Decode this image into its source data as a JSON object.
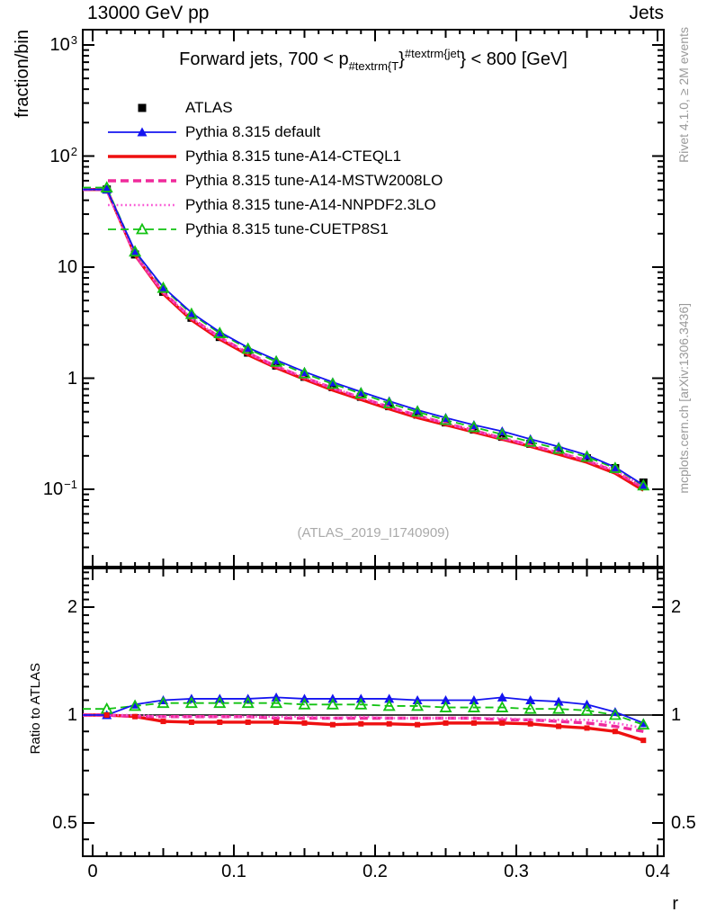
{
  "header": {
    "left": "13000 GeV pp",
    "right": "Jets"
  },
  "title": {
    "prefix": "Forward jets, 700 < p",
    "sub": "#textrm{T",
    "brace1": "}",
    "sup": "#textrm{jet",
    "suffix": "} < 800 [GeV]"
  },
  "watermark": "(ATLAS_2019_I1740909)",
  "side_texts": {
    "rivet": "Rivet 4.1.0, ≥ 2M events",
    "mcplots": "mcplots.cern.ch [arXiv:1306.3436]"
  },
  "axes": {
    "main_y_label": "fraction/bin",
    "ratio_y_label": "Ratio to ATLAS",
    "x_label": "r",
    "x_ticks": [
      {
        "v": 0,
        "label": "0"
      },
      {
        "v": 0.1,
        "label": "0.1"
      },
      {
        "v": 0.2,
        "label": "0.2"
      },
      {
        "v": 0.3,
        "label": "0.3"
      },
      {
        "v": 0.4,
        "label": "0.4"
      }
    ],
    "main_y_ticks": [
      {
        "v": 1000,
        "base": "10",
        "exp": "3"
      },
      {
        "v": 100,
        "base": "10",
        "exp": "2"
      },
      {
        "v": 10,
        "base": "10",
        "exp": ""
      },
      {
        "v": 1,
        "base": "1",
        "exp": ""
      },
      {
        "v": 0.1,
        "base": "10",
        "exp": "−1"
      }
    ],
    "ratio_y_ticks": [
      {
        "v": 2,
        "label": "2"
      },
      {
        "v": 1,
        "label": "1"
      },
      {
        "v": 0.5,
        "label": "0.5"
      }
    ]
  },
  "chart_data": {
    "type": "line",
    "title": "Forward jets, 700 < p_{#textrm{T}}^{#textrm{jet}} < 800 [GeV]",
    "xlabel": "r",
    "ylabel": "fraction/bin",
    "ratio_ylabel": "Ratio to ATLAS",
    "xscale": "linear",
    "yscale": "log",
    "ratio_yscale": "log",
    "xlim": [
      -0.007,
      0.4045
    ],
    "ylim": [
      0.02,
      1380
    ],
    "ratio_ylim": [
      0.404,
      2.56
    ],
    "legend_position": "top-left",
    "grid": false,
    "x": [
      0.01,
      0.03,
      0.05,
      0.07,
      0.09,
      0.11,
      0.13,
      0.15,
      0.17,
      0.19,
      0.21,
      0.23,
      0.25,
      0.27,
      0.29,
      0.31,
      0.33,
      0.35,
      0.37,
      0.39
    ],
    "reference": {
      "name": "ATLAS",
      "color": "#000000",
      "marker": "filled-square",
      "values": [
        50,
        13,
        6.0,
        3.5,
        2.35,
        1.7,
        1.3,
        1.03,
        0.83,
        0.68,
        0.56,
        0.47,
        0.4,
        0.345,
        0.297,
        0.257,
        0.222,
        0.19,
        0.155,
        0.115
      ]
    },
    "series": [
      {
        "name": "Pythia 8.315 tune-A14-CTEQL1",
        "color": "#ee1010",
        "line": "solid",
        "width": 3.4,
        "marker": "small-square",
        "ratio": [
          1.0,
          0.99,
          0.96,
          0.955,
          0.955,
          0.955,
          0.955,
          0.95,
          0.94,
          0.945,
          0.945,
          0.94,
          0.95,
          0.95,
          0.95,
          0.945,
          0.93,
          0.92,
          0.9,
          0.85
        ]
      },
      {
        "name": "Pythia 8.315 tune-A14-MSTW2008LO",
        "color": "#ef2a9b",
        "line": "dashed",
        "width": 3.4,
        "marker": "none",
        "ratio": [
          1.0,
          0.99,
          0.99,
          0.99,
          0.99,
          0.99,
          0.98,
          0.98,
          0.98,
          0.98,
          0.98,
          0.98,
          0.98,
          0.98,
          0.97,
          0.97,
          0.96,
          0.95,
          0.93,
          0.9
        ]
      },
      {
        "name": "Pythia 8.315 tune-A14-NNPDF2.3LO",
        "color": "#f959d5",
        "line": "dotted",
        "width": 2.6,
        "marker": "none",
        "ratio": [
          1.0,
          1.0,
          0.99,
          0.99,
          0.99,
          0.99,
          0.99,
          0.99,
          0.98,
          0.99,
          0.98,
          0.98,
          0.98,
          0.98,
          0.98,
          0.97,
          0.97,
          0.97,
          0.95,
          0.92
        ]
      },
      {
        "name": "Pythia 8.315 tune-CUETP8S1",
        "color": "#12c212",
        "line": "dashed",
        "width": 1.8,
        "marker": "open-triangle",
        "ratio": [
          1.04,
          1.06,
          1.08,
          1.08,
          1.08,
          1.08,
          1.08,
          1.07,
          1.07,
          1.07,
          1.06,
          1.06,
          1.05,
          1.05,
          1.05,
          1.04,
          1.04,
          1.03,
          1.0,
          0.94
        ]
      },
      {
        "name": "Pythia 8.315 default",
        "color": "#1414f0",
        "line": "solid",
        "width": 1.8,
        "marker": "filled-triangle",
        "ratio": [
          1.0,
          1.07,
          1.1,
          1.11,
          1.11,
          1.11,
          1.12,
          1.11,
          1.11,
          1.11,
          1.11,
          1.1,
          1.1,
          1.1,
          1.12,
          1.1,
          1.09,
          1.07,
          1.02,
          0.95
        ]
      }
    ],
    "legend_order": [
      "ATLAS",
      "Pythia 8.315 default",
      "Pythia 8.315 tune-A14-CTEQL1",
      "Pythia 8.315 tune-A14-MSTW2008LO",
      "Pythia 8.315 tune-A14-NNPDF2.3LO",
      "Pythia 8.315 tune-CUETP8S1"
    ]
  }
}
